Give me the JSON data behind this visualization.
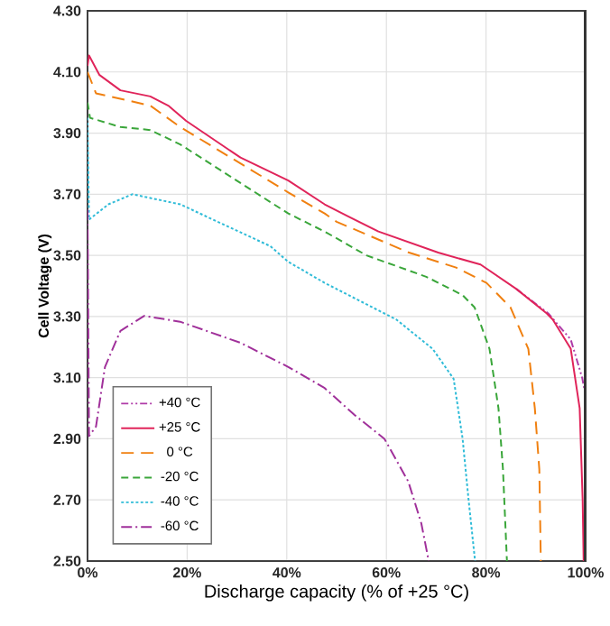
{
  "chart_data": {
    "type": "line",
    "xlabel": "Discharge capacity (% of +25 °C)",
    "ylabel": "Cell Voltage (V)",
    "xlim": [
      0,
      100
    ],
    "ylim": [
      2.5,
      4.3
    ],
    "xticks": [
      {
        "value": 0,
        "label": "0%"
      },
      {
        "value": 20,
        "label": "20%"
      },
      {
        "value": 40,
        "label": "40%"
      },
      {
        "value": 60,
        "label": "60%"
      },
      {
        "value": 80,
        "label": "80%"
      },
      {
        "value": 100,
        "label": "100%"
      }
    ],
    "yticks": [
      {
        "value": 2.5,
        "label": "2.50"
      },
      {
        "value": 2.7,
        "label": "2.70"
      },
      {
        "value": 2.9,
        "label": "2.90"
      },
      {
        "value": 3.1,
        "label": "3.10"
      },
      {
        "value": 3.3,
        "label": "3.30"
      },
      {
        "value": 3.5,
        "label": "3.50"
      },
      {
        "value": 3.7,
        "label": "3.70"
      },
      {
        "value": 3.9,
        "label": "3.90"
      },
      {
        "value": 4.1,
        "label": "4.10"
      },
      {
        "value": 4.3,
        "label": "4.30"
      }
    ],
    "grid": true,
    "legend": "bottom left",
    "series": [
      {
        "name": "+40 °C",
        "color": "#b03ca8",
        "line_style": "dashdotdotted",
        "x": [
          86.1,
          92.5,
          97,
          99.3,
          100
        ],
        "values": [
          3.39,
          3.31,
          3.225,
          3.1,
          3.04
        ]
      },
      {
        "name": "+25 °C",
        "color": "#e0245a",
        "line_style": "solid",
        "x": [
          0,
          0.3,
          2.4,
          6.6,
          12.6,
          16.2,
          19.8,
          30.7,
          40.3,
          47.6,
          52.4,
          58.4,
          70.4,
          78.9,
          86.1,
          92.2,
          93.4,
          97,
          98.8,
          99.4,
          99.6
        ],
        "values": [
          4.12,
          4.154,
          4.09,
          4.04,
          4.02,
          3.99,
          3.94,
          3.82,
          3.745,
          3.667,
          3.627,
          3.578,
          3.509,
          3.47,
          3.39,
          3.31,
          3.29,
          3.195,
          3.0,
          2.7,
          2.5
        ]
      },
      {
        "name": "0 °C",
        "color": "#f08010",
        "line_style": "loosely dashed",
        "x": [
          0,
          1.7,
          12.6,
          18.6,
          40.3,
          47.6,
          50,
          64.4,
          74,
          80.1,
          84.9,
          88.5,
          89.8,
          90.7,
          91
        ],
        "values": [
          4.1,
          4.03,
          3.99,
          3.92,
          3.706,
          3.637,
          3.61,
          3.51,
          3.46,
          3.41,
          3.33,
          3.194,
          3.0,
          2.8,
          2.5
        ]
      },
      {
        "name": "-20 °C",
        "color": "#3aa63a",
        "line_style": "dashed",
        "x": [
          0,
          0.5,
          6.6,
          12.6,
          18.6,
          40.3,
          47.6,
          56,
          68,
          75.3,
          77.7,
          80.7,
          82.5,
          83.4,
          84.2
        ],
        "values": [
          4.0,
          3.95,
          3.92,
          3.91,
          3.863,
          3.637,
          3.578,
          3.5,
          3.43,
          3.37,
          3.33,
          3.194,
          3.0,
          2.8,
          2.5
        ]
      },
      {
        "name": "-40 °C",
        "color": "#30bcd8",
        "line_style": "densely dotted",
        "x": [
          0,
          0.3,
          4.2,
          9,
          18.6,
          36.7,
          40.3,
          47.6,
          52.4,
          62,
          69.3,
          73.5,
          75.3,
          76.5,
          77.8
        ],
        "values": [
          3.95,
          3.617,
          3.667,
          3.7,
          3.667,
          3.53,
          3.479,
          3.41,
          3.37,
          3.29,
          3.194,
          3.096,
          2.9,
          2.7,
          2.5
        ]
      },
      {
        "name": "-60 °C",
        "color": "#a0309a",
        "line_style": "dashdotted",
        "x": [
          0,
          0.3,
          1.7,
          3.5,
          6.6,
          11.4,
          18.6,
          30.7,
          40.3,
          47.6,
          53.6,
          59.6,
          64.4,
          67,
          68.5
        ],
        "values": [
          3.65,
          2.909,
          2.94,
          3.135,
          3.253,
          3.302,
          3.283,
          3.214,
          3.135,
          3.066,
          2.978,
          2.9,
          2.76,
          2.624,
          2.5
        ]
      }
    ]
  }
}
